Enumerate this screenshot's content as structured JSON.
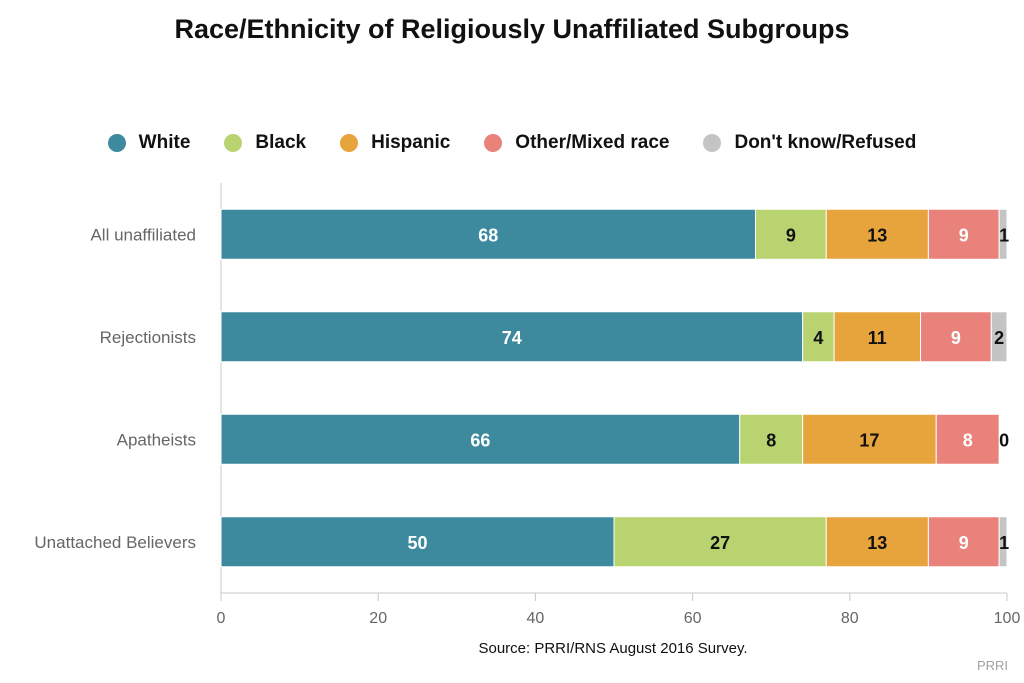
{
  "chart_data": {
    "type": "bar",
    "orientation": "horizontal",
    "stacked": true,
    "title": "Race/Ethnicity of Religiously Unaffiliated Subgroups",
    "categories": [
      "All unaffiliated",
      "Rejectionists",
      "Apatheists",
      "Unattached Believers"
    ],
    "series": [
      {
        "name": "White",
        "color": "#3d8a9e",
        "label_color": "#ffffff",
        "values": [
          68,
          74,
          66,
          50
        ]
      },
      {
        "name": "Black",
        "color": "#b8d36f",
        "label_color": "#111111",
        "values": [
          9,
          4,
          8,
          27
        ]
      },
      {
        "name": "Hispanic",
        "color": "#e8a43c",
        "label_color": "#111111",
        "values": [
          13,
          11,
          17,
          13
        ]
      },
      {
        "name": "Other/Mixed race",
        "color": "#e8827a",
        "label_color": "#ffffff",
        "values": [
          9,
          9,
          8,
          9
        ]
      },
      {
        "name": "Don't know/Refused",
        "color": "#c4c4c4",
        "label_color": "#111111",
        "values": [
          1,
          2,
          0,
          1
        ]
      }
    ],
    "xlim": [
      0,
      100
    ],
    "xticks": [
      "0",
      "20",
      "40",
      "60",
      "80",
      "100"
    ],
    "xlabel": "",
    "ylabel": "",
    "legend_position": "top",
    "grid": false,
    "source": "Source: PRRI/RNS August 2016 Survey.",
    "credit": "PRRI"
  }
}
